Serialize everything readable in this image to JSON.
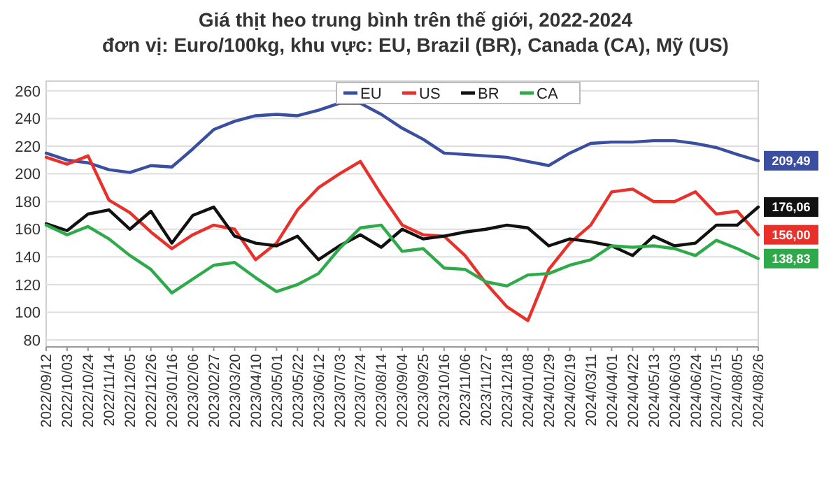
{
  "chart_data": {
    "type": "line",
    "title": "Giá thịt heo trung bình trên thế giới, 2022-2024",
    "subtitle": "đơn vị: Euro/100kg, khu vực: EU, Brazil (BR), Canada (CA), Mỹ (US)",
    "categories": [
      "2022/09/12",
      "2022/10/03",
      "2022/10/24",
      "2022/11/14",
      "2022/12/05",
      "2022/12/26",
      "2023/01/16",
      "2023/02/06",
      "2023/02/27",
      "2023/03/20",
      "2023/04/10",
      "2023/05/01",
      "2023/05/22",
      "2023/06/12",
      "2023/07/03",
      "2023/07/24",
      "2023/08/14",
      "2023/09/04",
      "2023/09/25",
      "2023/10/16",
      "2023/11/06",
      "2023/11/27",
      "2023/12/18",
      "2024/01/08",
      "2024/01/29",
      "2024/02/19",
      "2024/03/11",
      "2024/04/01",
      "2024/04/22",
      "2024/05/13",
      "2024/06/03",
      "2024/06/24",
      "2024/07/15",
      "2024/08/05",
      "2024/08/26"
    ],
    "series": [
      {
        "name": "EU",
        "color": "#3b4fa0",
        "values": [
          215,
          210,
          208,
          203,
          201,
          206,
          205,
          218,
          232,
          238,
          242,
          243,
          242,
          246,
          251,
          251,
          243,
          233,
          225,
          215,
          214,
          213,
          212,
          209,
          206,
          215,
          222,
          223,
          223,
          224,
          224,
          222,
          219,
          214,
          209.49
        ],
        "value_labels": [
          null,
          null,
          null,
          null,
          null,
          null,
          null,
          null,
          null,
          null,
          null,
          null,
          null,
          null,
          null,
          null,
          null,
          null,
          null,
          null,
          null,
          null,
          null,
          null,
          null,
          null,
          null,
          null,
          null,
          null,
          null,
          null,
          null,
          null,
          "209,49"
        ]
      },
      {
        "name": "US",
        "color": "#e8312b",
        "values": [
          212,
          207,
          213,
          181,
          172,
          158,
          146,
          156,
          163,
          160,
          138,
          150,
          174,
          190,
          200,
          209,
          185,
          163,
          156,
          155,
          141,
          121,
          104,
          94,
          131,
          150,
          163,
          187,
          189,
          180,
          180,
          187,
          171,
          173,
          156.0
        ],
        "value_labels": [
          null,
          null,
          null,
          null,
          null,
          null,
          null,
          null,
          null,
          null,
          null,
          null,
          null,
          null,
          null,
          null,
          null,
          null,
          null,
          null,
          null,
          null,
          null,
          null,
          null,
          null,
          null,
          null,
          null,
          null,
          null,
          null,
          null,
          null,
          "156,00"
        ]
      },
      {
        "name": "BR",
        "color": "#111111",
        "values": [
          164,
          159,
          171,
          174,
          160,
          173,
          150,
          170,
          176,
          155,
          150,
          148,
          155,
          138,
          148,
          156,
          147,
          160,
          153,
          155,
          158,
          160,
          163,
          161,
          148,
          153,
          151,
          148,
          141,
          155,
          148,
          150,
          163,
          163,
          176.06
        ],
        "value_labels": [
          null,
          null,
          null,
          null,
          null,
          null,
          null,
          null,
          null,
          null,
          null,
          null,
          null,
          null,
          null,
          null,
          null,
          null,
          null,
          null,
          null,
          null,
          null,
          null,
          null,
          null,
          null,
          null,
          null,
          null,
          null,
          null,
          null,
          null,
          "176,06"
        ]
      },
      {
        "name": "CA",
        "color": "#2eaa4a",
        "values": [
          163,
          156,
          162,
          153,
          141,
          131,
          114,
          124,
          134,
          136,
          125,
          115,
          120,
          128,
          146,
          161,
          163,
          144,
          146,
          132,
          131,
          122,
          119,
          127,
          128,
          134,
          138,
          148,
          147,
          148,
          146,
          141,
          152,
          146,
          138.83
        ],
        "value_labels": [
          null,
          null,
          null,
          null,
          null,
          null,
          null,
          null,
          null,
          null,
          null,
          null,
          null,
          null,
          null,
          null,
          null,
          null,
          null,
          null,
          null,
          null,
          null,
          null,
          null,
          null,
          null,
          null,
          null,
          null,
          null,
          null,
          null,
          null,
          "138,83"
        ]
      }
    ],
    "ylim": [
      75,
      267
    ],
    "yticks": [
      80,
      100,
      120,
      140,
      160,
      180,
      200,
      220,
      240,
      260
    ],
    "grid": "y",
    "legend": "top",
    "marker": "none",
    "line_style": "solid"
  }
}
